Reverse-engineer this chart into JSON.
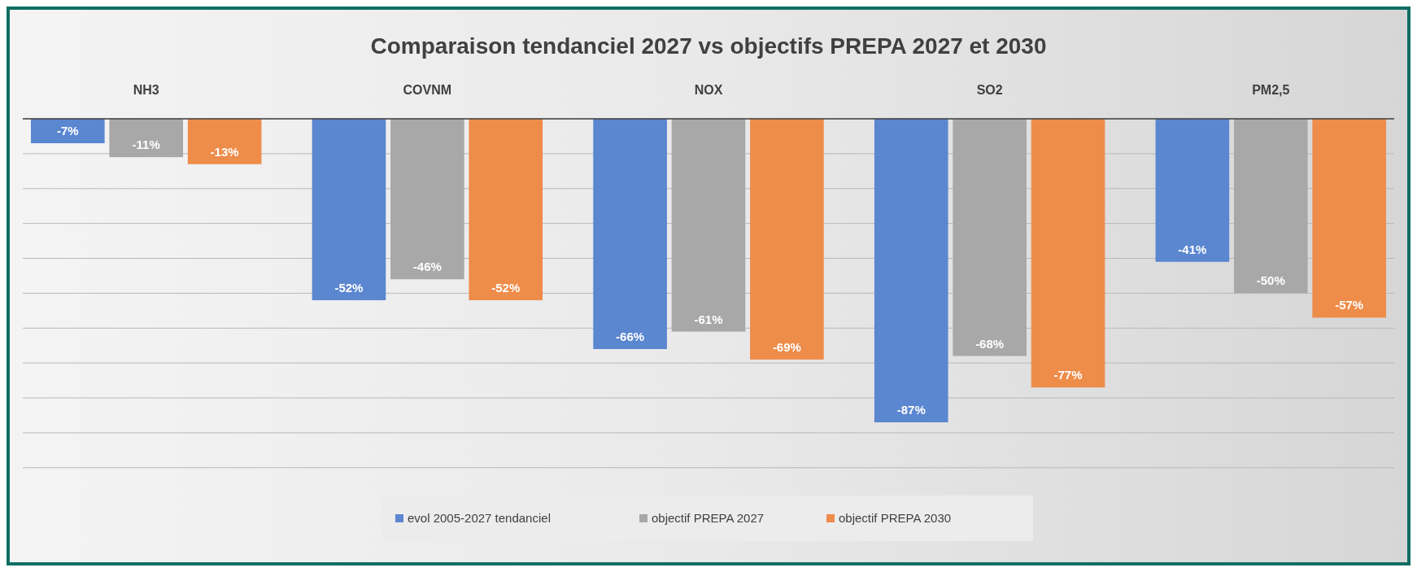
{
  "chart_data": {
    "type": "bar",
    "title": "Comparaison tendanciel 2027  vs objectifs PREPA 2027 et 2030",
    "categories": [
      "NH3",
      "COVNM",
      "NOX",
      "SO2",
      "PM2,5"
    ],
    "series": [
      {
        "name": "evol 2005-2027 tendanciel",
        "color": "#5b86d0",
        "values": [
          -7,
          -52,
          -66,
          -87,
          -41
        ],
        "value_labels": [
          "-7%",
          "-52%",
          "-66%",
          "-87%",
          "-41%"
        ]
      },
      {
        "name": "objectif PREPA 2027",
        "color": "#a8a8a8",
        "values": [
          -11,
          -46,
          -61,
          -68,
          -50
        ],
        "value_labels": [
          "-11%",
          "-46%",
          "-61%",
          "-68%",
          "-50%"
        ]
      },
      {
        "name": "objectif PREPA 2030",
        "color": "#ee8c4a",
        "values": [
          -13,
          -52,
          -69,
          -77,
          -57
        ],
        "value_labels": [
          "-13%",
          "-52%",
          "-69%",
          "-77%",
          "-57%"
        ]
      }
    ],
    "grid": true,
    "legend": "bottom"
  }
}
